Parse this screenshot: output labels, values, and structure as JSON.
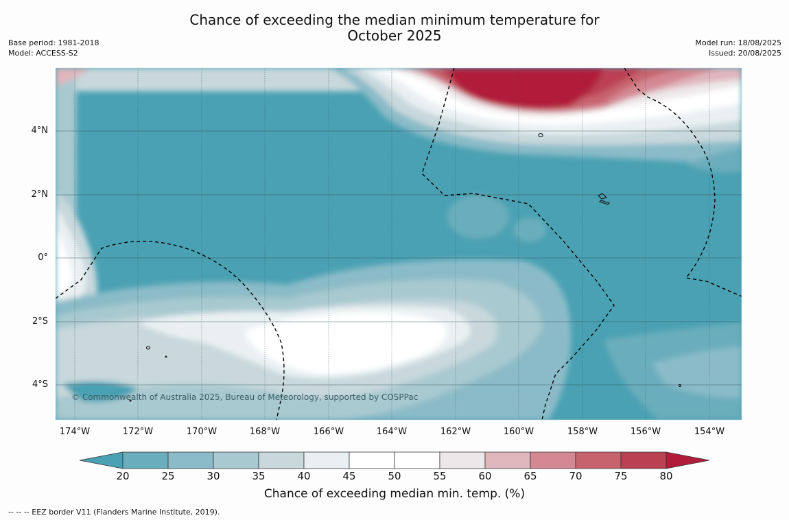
{
  "title_line1": "Chance of exceeding the median minimum temperature for",
  "title_line2": "October 2025",
  "base_period": "Base period: 1981-2018",
  "model": "Model: ACCESS-S2",
  "model_run": "Model run: 18/08/2025",
  "issued": "Issued: 20/08/2025",
  "lat_labels": [
    "4°N",
    "2°N",
    "0°",
    "2°S",
    "4°S"
  ],
  "lon_labels": [
    "174°W",
    "172°W",
    "170°W",
    "168°W",
    "166°W",
    "164°W",
    "162°W",
    "160°W",
    "158°W",
    "156°W",
    "154°W"
  ],
  "credit": "© Commonwealth of Australia 2025, Bureau of Meteorology, supported by COSPPac",
  "colorbar": {
    "ticks": [
      "20",
      "25",
      "30",
      "35",
      "40",
      "45",
      "50",
      "55",
      "60",
      "65",
      "70",
      "75",
      "80"
    ],
    "title": "Chance of exceeding median min. temp. (%)",
    "colors": {
      "under": "#4aa1b3",
      "20-25": "#6aadbc",
      "25-30": "#8bbbc8",
      "30-35": "#a9c9d0",
      "35-40": "#c8d8dc",
      "40-45": "#eaf0f2",
      "45-50": "#ffffff",
      "50-55": "#ffffff",
      "55-60": "#ece8ea",
      "60-65": "#e0b6bd",
      "65-70": "#d48893",
      "70-75": "#c7636d",
      "75-80": "#bb4152",
      "over": "#b11c3b"
    }
  },
  "footnote": "--  --  -- EEZ border V11 (Flanders Marine Institute, 2019)."
}
